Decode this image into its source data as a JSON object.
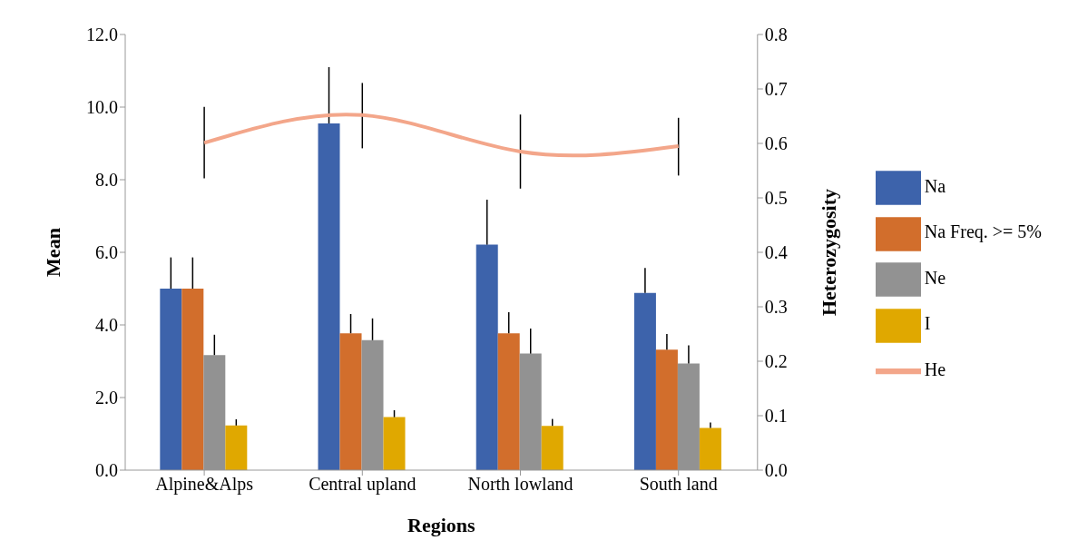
{
  "chart_data": {
    "type": "bar",
    "xlabel": "Regions",
    "ylabel": "Mean",
    "y2label": "Heterozygosity",
    "categories": [
      "Alpine&Alps",
      "Central upland",
      "North lowland",
      "South land"
    ],
    "series": [
      {
        "name": "Na",
        "color": "#3d63ab",
        "values": [
          5.0,
          9.55,
          6.21,
          4.88
        ],
        "errors": [
          [
            5.0,
            5.86
          ],
          [
            9.55,
            11.1
          ],
          [
            6.21,
            7.45
          ],
          [
            4.88,
            5.57
          ]
        ]
      },
      {
        "name": "Na Freq. >= 5%",
        "color": "#d26e2c",
        "values": [
          5.0,
          3.77,
          3.77,
          3.32
        ],
        "errors": [
          [
            5.0,
            5.86
          ],
          [
            3.77,
            4.3
          ],
          [
            3.77,
            4.35
          ],
          [
            3.32,
            3.75
          ]
        ]
      },
      {
        "name": "Ne",
        "color": "#929292",
        "values": [
          3.17,
          3.58,
          3.21,
          2.94
        ],
        "errors": [
          [
            3.17,
            3.73
          ],
          [
            3.58,
            4.18
          ],
          [
            3.21,
            3.9
          ],
          [
            2.94,
            3.44
          ]
        ]
      },
      {
        "name": "I",
        "color": "#e0a800",
        "values": [
          1.23,
          1.46,
          1.22,
          1.16
        ],
        "errors": [
          [
            1.23,
            1.4
          ],
          [
            1.46,
            1.65
          ],
          [
            1.22,
            1.41
          ],
          [
            1.16,
            1.31
          ]
        ]
      },
      {
        "name": "He",
        "type": "line",
        "axis": "y2",
        "color": "#f3a68a",
        "values": [
          0.601,
          0.652,
          0.585,
          0.595
        ],
        "errors": [
          [
            0.536,
            0.667
          ],
          [
            0.591,
            0.711
          ],
          [
            0.517,
            0.653
          ],
          [
            0.541,
            0.647
          ]
        ]
      }
    ],
    "ylim": [
      0,
      12
    ],
    "yticks": [
      {
        "value": 0,
        "label": "0.0"
      },
      {
        "value": 2,
        "label": "2.0"
      },
      {
        "value": 4,
        "label": "4.0"
      },
      {
        "value": 6,
        "label": "6.0"
      },
      {
        "value": 8,
        "label": "8.0"
      },
      {
        "value": 10,
        "label": "10.0"
      },
      {
        "value": 12,
        "label": "12.0"
      }
    ],
    "y2lim": [
      0,
      0.8
    ],
    "y2ticks": [
      {
        "value": 0,
        "label": "0.0"
      },
      {
        "value": 0.1,
        "label": "0.1"
      },
      {
        "value": 0.2,
        "label": "0.2"
      },
      {
        "value": 0.3,
        "label": "0.3"
      },
      {
        "value": 0.4,
        "label": "0.4"
      },
      {
        "value": 0.5,
        "label": "0.5"
      },
      {
        "value": 0.6,
        "label": "0.6"
      },
      {
        "value": 0.7,
        "label": "0.7"
      },
      {
        "value": 0.8,
        "label": "0.8"
      }
    ],
    "legend": "right",
    "grid": false,
    "marker": "none"
  }
}
